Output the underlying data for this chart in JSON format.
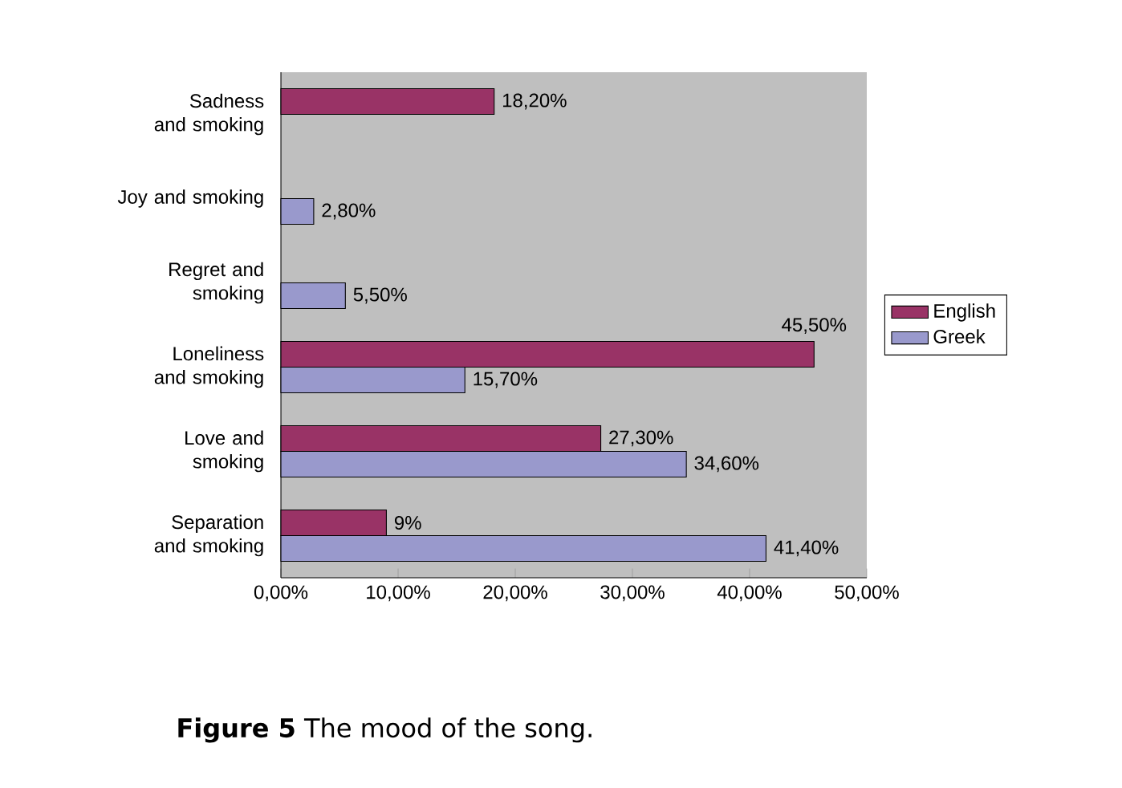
{
  "chart_data": {
    "type": "bar",
    "orientation": "horizontal",
    "title": "**Figure 5** The mood of the song.",
    "categories": [
      "Sadness and smoking",
      "Joy and smoking",
      "Regret and smoking",
      "Loneliness and smoking",
      "Love and smoking",
      "Separation and smoking"
    ],
    "series": [
      {
        "name": "English",
        "color": "#993366",
        "values": [
          18.2,
          null,
          null,
          45.5,
          27.3,
          9
        ],
        "value_labels": [
          "18,20%",
          null,
          null,
          "45,50%",
          "27,30%",
          "9%"
        ]
      },
      {
        "name": "Greek",
        "color": "#9999cc",
        "values": [
          null,
          2.8,
          5.5,
          15.7,
          34.6,
          41.4
        ],
        "value_labels": [
          null,
          "2,80%",
          "5,50%",
          "15,70%",
          "34,60%",
          "41,40%"
        ]
      }
    ],
    "xlim": [
      0,
      50
    ],
    "xticks": [
      {
        "value": 0,
        "label": "0,00%"
      },
      {
        "value": 10,
        "label": "10,00%"
      },
      {
        "value": 20,
        "label": "20,00%"
      },
      {
        "value": 30,
        "label": "30,00%"
      },
      {
        "value": 40,
        "label": "40,00%"
      },
      {
        "value": 50,
        "label": "50,00%"
      }
    ],
    "legend": "right",
    "grid": false
  }
}
